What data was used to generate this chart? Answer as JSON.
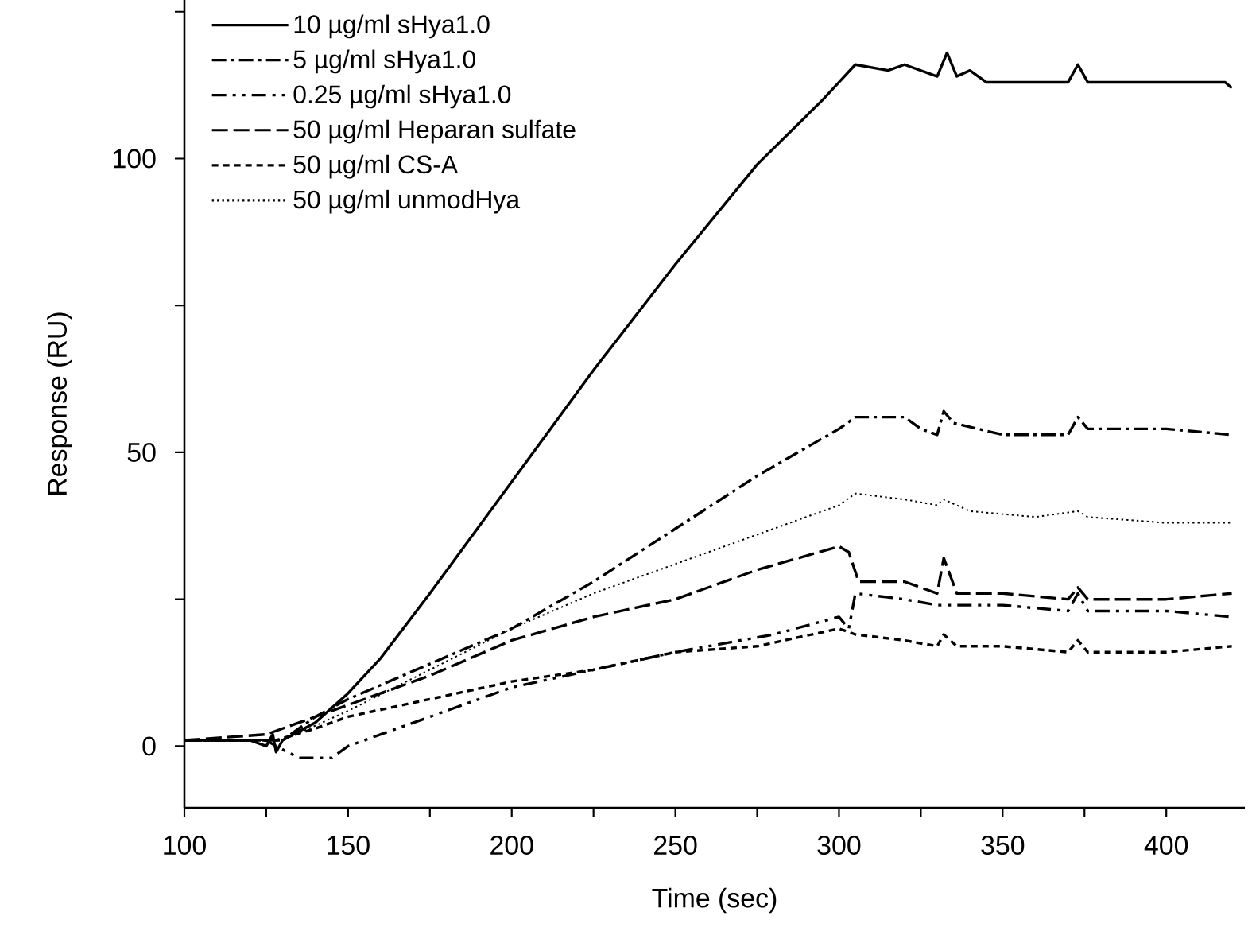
{
  "chart_data": {
    "type": "line",
    "xlabel": "Time (sec)",
    "ylabel": "Response (RU)",
    "xlim": [
      100,
      424
    ],
    "ylim": [
      -10.5,
      127
    ],
    "xticks": [
      100,
      {
        "value": 125,
        "label": null
      },
      150,
      {
        "value": 175,
        "label": null
      },
      200,
      {
        "value": 225,
        "label": null
      },
      250,
      {
        "value": 275,
        "label": null
      },
      300,
      {
        "value": 325,
        "label": null
      },
      350,
      {
        "value": 375,
        "label": null
      },
      400
    ],
    "yticks": [
      0,
      {
        "value": 25,
        "label": null
      },
      50,
      {
        "value": 75,
        "label": null
      },
      100,
      {
        "value": 125,
        "label": null
      }
    ],
    "grid": false,
    "legend": "top left",
    "marker": "none",
    "series": [
      {
        "name": "10 µg/ml sHya1.0",
        "color": "#000000",
        "line_style": "solid",
        "x": [
          100,
          110,
          120,
          125,
          127,
          128,
          130,
          140,
          150,
          160,
          175,
          200,
          225,
          250,
          275,
          295,
          300,
          305,
          315,
          320,
          325,
          330,
          333,
          336,
          340,
          345,
          370,
          373,
          376,
          380,
          400,
          418,
          420
        ],
        "values": [
          1,
          1,
          1,
          0,
          2,
          -1,
          1,
          4,
          9,
          15,
          26,
          45,
          64,
          82,
          99,
          110,
          113,
          116,
          115,
          116,
          115,
          114,
          118,
          114,
          115,
          113,
          113,
          116,
          113,
          113,
          113,
          113,
          112
        ]
      },
      {
        "name": "5 µg/ml sHya1.0",
        "color": "#000000",
        "line_style": "dashdot",
        "x": [
          100,
          125,
          130,
          140,
          150,
          175,
          200,
          225,
          250,
          275,
          300,
          305,
          320,
          325,
          330,
          332,
          335,
          350,
          370,
          373,
          376,
          400,
          420
        ],
        "values": [
          1,
          1,
          1,
          5,
          8,
          14,
          20,
          28,
          37,
          46,
          54,
          56,
          56,
          54,
          53,
          57,
          55,
          53,
          53,
          56,
          54,
          54,
          53
        ]
      },
      {
        "name": "0.25 µg/ml sHya1.0",
        "color": "#000000",
        "line_style": "dashdotdot",
        "x": [
          100,
          125,
          128,
          135,
          145,
          150,
          175,
          200,
          250,
          280,
          300,
          303,
          305,
          320,
          330,
          350,
          370,
          373,
          376,
          400,
          420
        ],
        "values": [
          1,
          1,
          0,
          -2,
          -2,
          0,
          5,
          10,
          16,
          19,
          22,
          20,
          26,
          25,
          24,
          24,
          23,
          26,
          23,
          23,
          22
        ]
      },
      {
        "name": "50 µg/ml Heparan sulfate",
        "color": "#000000",
        "line_style": "longdashed",
        "x": [
          100,
          125,
          130,
          150,
          175,
          200,
          225,
          250,
          275,
          300,
          303,
          306,
          320,
          330,
          332,
          336,
          350,
          370,
          373,
          376,
          400,
          420
        ],
        "values": [
          1,
          2,
          3,
          7,
          12,
          18,
          22,
          25,
          30,
          34,
          33,
          28,
          28,
          26,
          32,
          26,
          26,
          25,
          27,
          25,
          25,
          26
        ]
      },
      {
        "name": "50 µg/ml CS-A",
        "color": "#000000",
        "line_style": "dashed",
        "x": [
          100,
          125,
          128,
          140,
          150,
          175,
          200,
          225,
          250,
          275,
          300,
          305,
          320,
          330,
          332,
          336,
          350,
          370,
          373,
          376,
          400,
          420
        ],
        "values": [
          1,
          1,
          1,
          3,
          5,
          8,
          11,
          13,
          16,
          17,
          20,
          19,
          18,
          17,
          19,
          17,
          17,
          16,
          18,
          16,
          16,
          17
        ]
      },
      {
        "name": "50 µg/ml unmodHya",
        "color": "#000000",
        "line_style": "dotted",
        "x": [
          100,
          125,
          130,
          150,
          175,
          200,
          225,
          250,
          275,
          300,
          305,
          320,
          330,
          332,
          340,
          360,
          373,
          376,
          400,
          420
        ],
        "values": [
          1,
          1,
          1,
          6,
          13,
          20,
          26,
          31,
          36,
          41,
          43,
          42,
          41,
          42,
          40,
          39,
          40,
          39,
          38,
          38
        ]
      }
    ]
  }
}
